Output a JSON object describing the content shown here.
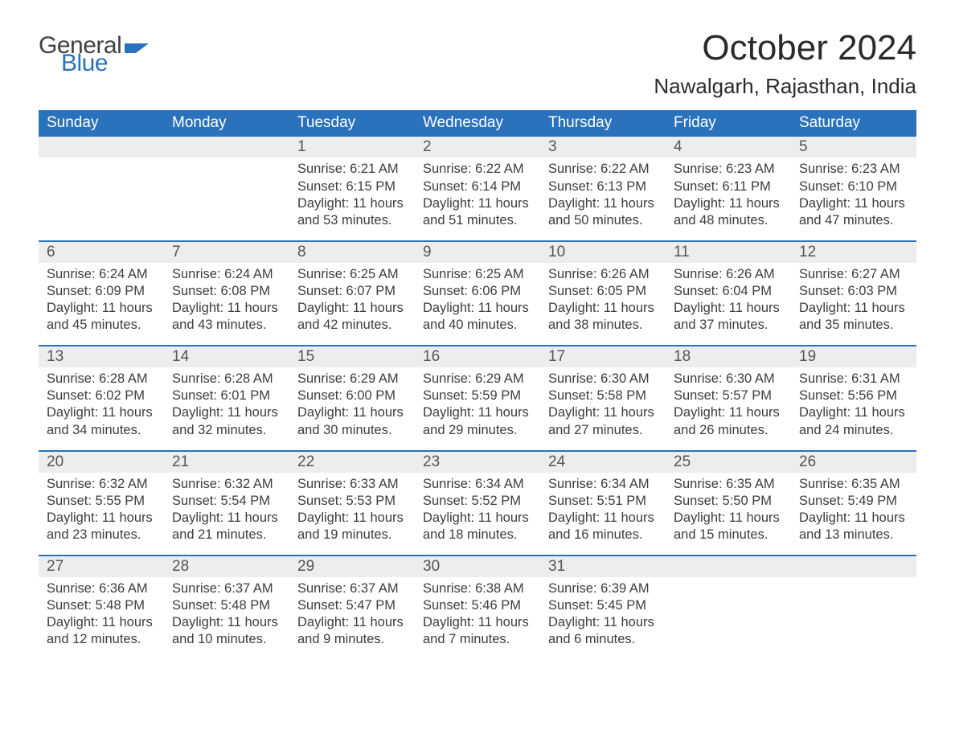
{
  "brand": {
    "word1": "General",
    "word2": "Blue",
    "word1_color": "#404040",
    "word2_color": "#2a72bb",
    "flag_color": "#2a72bb"
  },
  "title": {
    "month_year": "October 2024",
    "location": "Nawalgarh, Rajasthan, India",
    "title_fontsize": 44,
    "location_fontsize": 26,
    "text_color": "#2b2b2b"
  },
  "calendar": {
    "header_bg": "#2a72bb",
    "header_fg": "#ffffff",
    "daynum_bg": "#eceeee",
    "week_divider_color": "#2a72bb",
    "body_text_color": "#3d3d3d",
    "days_of_week": [
      "Sunday",
      "Monday",
      "Tuesday",
      "Wednesday",
      "Thursday",
      "Friday",
      "Saturday"
    ],
    "weeks": [
      [
        {
          "n": "",
          "sunrise": "",
          "sunset": "",
          "daylight": ""
        },
        {
          "n": "",
          "sunrise": "",
          "sunset": "",
          "daylight": ""
        },
        {
          "n": "1",
          "sunrise": "Sunrise: 6:21 AM",
          "sunset": "Sunset: 6:15 PM",
          "daylight": "Daylight: 11 hours and 53 minutes."
        },
        {
          "n": "2",
          "sunrise": "Sunrise: 6:22 AM",
          "sunset": "Sunset: 6:14 PM",
          "daylight": "Daylight: 11 hours and 51 minutes."
        },
        {
          "n": "3",
          "sunrise": "Sunrise: 6:22 AM",
          "sunset": "Sunset: 6:13 PM",
          "daylight": "Daylight: 11 hours and 50 minutes."
        },
        {
          "n": "4",
          "sunrise": "Sunrise: 6:23 AM",
          "sunset": "Sunset: 6:11 PM",
          "daylight": "Daylight: 11 hours and 48 minutes."
        },
        {
          "n": "5",
          "sunrise": "Sunrise: 6:23 AM",
          "sunset": "Sunset: 6:10 PM",
          "daylight": "Daylight: 11 hours and 47 minutes."
        }
      ],
      [
        {
          "n": "6",
          "sunrise": "Sunrise: 6:24 AM",
          "sunset": "Sunset: 6:09 PM",
          "daylight": "Daylight: 11 hours and 45 minutes."
        },
        {
          "n": "7",
          "sunrise": "Sunrise: 6:24 AM",
          "sunset": "Sunset: 6:08 PM",
          "daylight": "Daylight: 11 hours and 43 minutes."
        },
        {
          "n": "8",
          "sunrise": "Sunrise: 6:25 AM",
          "sunset": "Sunset: 6:07 PM",
          "daylight": "Daylight: 11 hours and 42 minutes."
        },
        {
          "n": "9",
          "sunrise": "Sunrise: 6:25 AM",
          "sunset": "Sunset: 6:06 PM",
          "daylight": "Daylight: 11 hours and 40 minutes."
        },
        {
          "n": "10",
          "sunrise": "Sunrise: 6:26 AM",
          "sunset": "Sunset: 6:05 PM",
          "daylight": "Daylight: 11 hours and 38 minutes."
        },
        {
          "n": "11",
          "sunrise": "Sunrise: 6:26 AM",
          "sunset": "Sunset: 6:04 PM",
          "daylight": "Daylight: 11 hours and 37 minutes."
        },
        {
          "n": "12",
          "sunrise": "Sunrise: 6:27 AM",
          "sunset": "Sunset: 6:03 PM",
          "daylight": "Daylight: 11 hours and 35 minutes."
        }
      ],
      [
        {
          "n": "13",
          "sunrise": "Sunrise: 6:28 AM",
          "sunset": "Sunset: 6:02 PM",
          "daylight": "Daylight: 11 hours and 34 minutes."
        },
        {
          "n": "14",
          "sunrise": "Sunrise: 6:28 AM",
          "sunset": "Sunset: 6:01 PM",
          "daylight": "Daylight: 11 hours and 32 minutes."
        },
        {
          "n": "15",
          "sunrise": "Sunrise: 6:29 AM",
          "sunset": "Sunset: 6:00 PM",
          "daylight": "Daylight: 11 hours and 30 minutes."
        },
        {
          "n": "16",
          "sunrise": "Sunrise: 6:29 AM",
          "sunset": "Sunset: 5:59 PM",
          "daylight": "Daylight: 11 hours and 29 minutes."
        },
        {
          "n": "17",
          "sunrise": "Sunrise: 6:30 AM",
          "sunset": "Sunset: 5:58 PM",
          "daylight": "Daylight: 11 hours and 27 minutes."
        },
        {
          "n": "18",
          "sunrise": "Sunrise: 6:30 AM",
          "sunset": "Sunset: 5:57 PM",
          "daylight": "Daylight: 11 hours and 26 minutes."
        },
        {
          "n": "19",
          "sunrise": "Sunrise: 6:31 AM",
          "sunset": "Sunset: 5:56 PM",
          "daylight": "Daylight: 11 hours and 24 minutes."
        }
      ],
      [
        {
          "n": "20",
          "sunrise": "Sunrise: 6:32 AM",
          "sunset": "Sunset: 5:55 PM",
          "daylight": "Daylight: 11 hours and 23 minutes."
        },
        {
          "n": "21",
          "sunrise": "Sunrise: 6:32 AM",
          "sunset": "Sunset: 5:54 PM",
          "daylight": "Daylight: 11 hours and 21 minutes."
        },
        {
          "n": "22",
          "sunrise": "Sunrise: 6:33 AM",
          "sunset": "Sunset: 5:53 PM",
          "daylight": "Daylight: 11 hours and 19 minutes."
        },
        {
          "n": "23",
          "sunrise": "Sunrise: 6:34 AM",
          "sunset": "Sunset: 5:52 PM",
          "daylight": "Daylight: 11 hours and 18 minutes."
        },
        {
          "n": "24",
          "sunrise": "Sunrise: 6:34 AM",
          "sunset": "Sunset: 5:51 PM",
          "daylight": "Daylight: 11 hours and 16 minutes."
        },
        {
          "n": "25",
          "sunrise": "Sunrise: 6:35 AM",
          "sunset": "Sunset: 5:50 PM",
          "daylight": "Daylight: 11 hours and 15 minutes."
        },
        {
          "n": "26",
          "sunrise": "Sunrise: 6:35 AM",
          "sunset": "Sunset: 5:49 PM",
          "daylight": "Daylight: 11 hours and 13 minutes."
        }
      ],
      [
        {
          "n": "27",
          "sunrise": "Sunrise: 6:36 AM",
          "sunset": "Sunset: 5:48 PM",
          "daylight": "Daylight: 11 hours and 12 minutes."
        },
        {
          "n": "28",
          "sunrise": "Sunrise: 6:37 AM",
          "sunset": "Sunset: 5:48 PM",
          "daylight": "Daylight: 11 hours and 10 minutes."
        },
        {
          "n": "29",
          "sunrise": "Sunrise: 6:37 AM",
          "sunset": "Sunset: 5:47 PM",
          "daylight": "Daylight: 11 hours and 9 minutes."
        },
        {
          "n": "30",
          "sunrise": "Sunrise: 6:38 AM",
          "sunset": "Sunset: 5:46 PM",
          "daylight": "Daylight: 11 hours and 7 minutes."
        },
        {
          "n": "31",
          "sunrise": "Sunrise: 6:39 AM",
          "sunset": "Sunset: 5:45 PM",
          "daylight": "Daylight: 11 hours and 6 minutes."
        },
        {
          "n": "",
          "sunrise": "",
          "sunset": "",
          "daylight": ""
        },
        {
          "n": "",
          "sunrise": "",
          "sunset": "",
          "daylight": ""
        }
      ]
    ]
  }
}
